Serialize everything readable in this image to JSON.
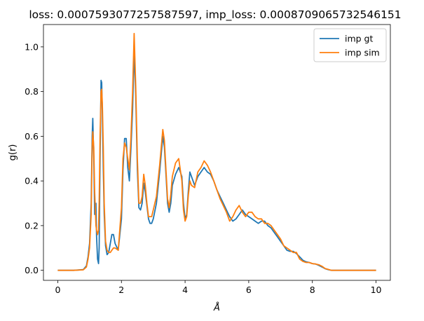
{
  "chart_data": {
    "type": "line",
    "title": "loss: 0.0007593077257587597, imp_loss: 0.0008709065732546151",
    "xlabel": "Å",
    "ylabel": "g(r)",
    "xlim": [
      -0.45,
      10.45
    ],
    "ylim": [
      -0.045,
      1.1
    ],
    "xticks": [
      0,
      2,
      4,
      6,
      8,
      10
    ],
    "yticks": [
      0.0,
      0.2,
      0.4,
      0.6,
      0.8,
      1.0
    ],
    "xtick_labels": [
      "0",
      "2",
      "4",
      "6",
      "8",
      "10"
    ],
    "ytick_labels": [
      "0.0",
      "0.2",
      "0.4",
      "0.6",
      "0.8",
      "1.0"
    ],
    "grid": false,
    "legend_position": "top-right",
    "series": [
      {
        "name": "imp gt",
        "color": "#1f77b4",
        "x": [
          0,
          0.5,
          0.8,
          0.9,
          0.95,
          1.0,
          1.05,
          1.08,
          1.1,
          1.13,
          1.16,
          1.2,
          1.22,
          1.25,
          1.28,
          1.3,
          1.33,
          1.36,
          1.38,
          1.4,
          1.43,
          1.46,
          1.5,
          1.55,
          1.6,
          1.65,
          1.7,
          1.75,
          1.8,
          1.9,
          2.0,
          2.05,
          2.1,
          2.15,
          2.2,
          2.25,
          2.3,
          2.35,
          2.4,
          2.45,
          2.5,
          2.55,
          2.6,
          2.65,
          2.7,
          2.75,
          2.8,
          2.85,
          2.9,
          2.95,
          3.0,
          3.1,
          3.2,
          3.3,
          3.35,
          3.4,
          3.45,
          3.5,
          3.55,
          3.6,
          3.7,
          3.8,
          3.9,
          3.95,
          4.0,
          4.05,
          4.1,
          4.15,
          4.2,
          4.3,
          4.4,
          4.5,
          4.6,
          4.7,
          4.8,
          4.9,
          5.0,
          5.1,
          5.2,
          5.3,
          5.4,
          5.5,
          5.6,
          5.7,
          5.8,
          5.9,
          6.0,
          6.1,
          6.2,
          6.3,
          6.4,
          6.5,
          6.6,
          6.7,
          6.8,
          6.9,
          7.0,
          7.1,
          7.2,
          7.3,
          7.4,
          7.5,
          7.6,
          7.7,
          7.8,
          7.9,
          8.0,
          8.1,
          8.2,
          8.3,
          8.4,
          8.5,
          8.6,
          8.7,
          8.8,
          9.0,
          9.5,
          10.0
        ],
        "values": [
          0.0,
          0.0,
          0.003,
          0.02,
          0.06,
          0.12,
          0.3,
          0.6,
          0.68,
          0.5,
          0.25,
          0.3,
          0.15,
          0.05,
          0.03,
          0.1,
          0.5,
          0.85,
          0.84,
          0.7,
          0.45,
          0.25,
          0.11,
          0.07,
          0.08,
          0.12,
          0.16,
          0.16,
          0.12,
          0.09,
          0.23,
          0.45,
          0.59,
          0.59,
          0.46,
          0.4,
          0.55,
          0.72,
          0.98,
          0.78,
          0.45,
          0.28,
          0.27,
          0.3,
          0.39,
          0.35,
          0.29,
          0.23,
          0.21,
          0.21,
          0.23,
          0.3,
          0.44,
          0.6,
          0.55,
          0.43,
          0.3,
          0.26,
          0.3,
          0.38,
          0.43,
          0.46,
          0.42,
          0.3,
          0.23,
          0.25,
          0.35,
          0.44,
          0.42,
          0.38,
          0.42,
          0.44,
          0.46,
          0.44,
          0.43,
          0.4,
          0.36,
          0.33,
          0.3,
          0.27,
          0.24,
          0.22,
          0.23,
          0.25,
          0.27,
          0.25,
          0.24,
          0.23,
          0.22,
          0.21,
          0.22,
          0.22,
          0.2,
          0.19,
          0.17,
          0.15,
          0.13,
          0.11,
          0.09,
          0.085,
          0.085,
          0.075,
          0.06,
          0.045,
          0.038,
          0.035,
          0.03,
          0.028,
          0.022,
          0.015,
          0.007,
          0.003,
          0.0,
          0.0,
          0.0,
          0.0,
          0.0,
          0.0
        ]
      },
      {
        "name": "imp sim",
        "color": "#ff7f0e",
        "x": [
          0,
          0.5,
          0.8,
          0.9,
          0.95,
          1.0,
          1.05,
          1.08,
          1.1,
          1.13,
          1.16,
          1.2,
          1.22,
          1.25,
          1.28,
          1.3,
          1.33,
          1.36,
          1.38,
          1.4,
          1.43,
          1.46,
          1.5,
          1.55,
          1.6,
          1.65,
          1.7,
          1.75,
          1.8,
          1.9,
          2.0,
          2.05,
          2.1,
          2.15,
          2.2,
          2.25,
          2.3,
          2.35,
          2.4,
          2.45,
          2.5,
          2.55,
          2.6,
          2.65,
          2.7,
          2.75,
          2.8,
          2.85,
          2.9,
          2.95,
          3.0,
          3.1,
          3.2,
          3.3,
          3.35,
          3.4,
          3.45,
          3.5,
          3.55,
          3.6,
          3.7,
          3.8,
          3.9,
          3.95,
          4.0,
          4.05,
          4.1,
          4.15,
          4.2,
          4.3,
          4.4,
          4.5,
          4.6,
          4.7,
          4.8,
          4.9,
          5.0,
          5.1,
          5.2,
          5.3,
          5.4,
          5.5,
          5.6,
          5.7,
          5.8,
          5.9,
          6.0,
          6.1,
          6.2,
          6.3,
          6.4,
          6.5,
          6.6,
          6.7,
          6.8,
          6.9,
          7.0,
          7.1,
          7.2,
          7.3,
          7.4,
          7.5,
          7.6,
          7.7,
          7.8,
          7.9,
          8.0,
          8.1,
          8.2,
          8.3,
          8.4,
          8.5,
          8.6,
          8.7,
          8.8,
          9.0,
          9.5,
          10.0
        ],
        "values": [
          0.0,
          0.0,
          0.002,
          0.015,
          0.05,
          0.1,
          0.25,
          0.55,
          0.62,
          0.55,
          0.35,
          0.2,
          0.18,
          0.16,
          0.18,
          0.3,
          0.6,
          0.8,
          0.81,
          0.75,
          0.55,
          0.3,
          0.13,
          0.09,
          0.08,
          0.08,
          0.09,
          0.1,
          0.1,
          0.09,
          0.28,
          0.5,
          0.57,
          0.55,
          0.5,
          0.45,
          0.6,
          0.8,
          1.06,
          0.82,
          0.5,
          0.3,
          0.3,
          0.33,
          0.43,
          0.38,
          0.3,
          0.24,
          0.24,
          0.24,
          0.27,
          0.33,
          0.47,
          0.63,
          0.58,
          0.45,
          0.32,
          0.28,
          0.34,
          0.42,
          0.48,
          0.5,
          0.4,
          0.27,
          0.22,
          0.24,
          0.33,
          0.4,
          0.38,
          0.37,
          0.44,
          0.46,
          0.49,
          0.47,
          0.44,
          0.4,
          0.36,
          0.32,
          0.29,
          0.26,
          0.22,
          0.24,
          0.27,
          0.29,
          0.26,
          0.24,
          0.26,
          0.26,
          0.24,
          0.23,
          0.23,
          0.21,
          0.21,
          0.2,
          0.18,
          0.16,
          0.14,
          0.11,
          0.1,
          0.09,
          0.08,
          0.08,
          0.05,
          0.04,
          0.035,
          0.035,
          0.03,
          0.028,
          0.025,
          0.018,
          0.008,
          0.004,
          0.0,
          0.0,
          0.0,
          0.0,
          0.0,
          0.0
        ]
      }
    ]
  }
}
